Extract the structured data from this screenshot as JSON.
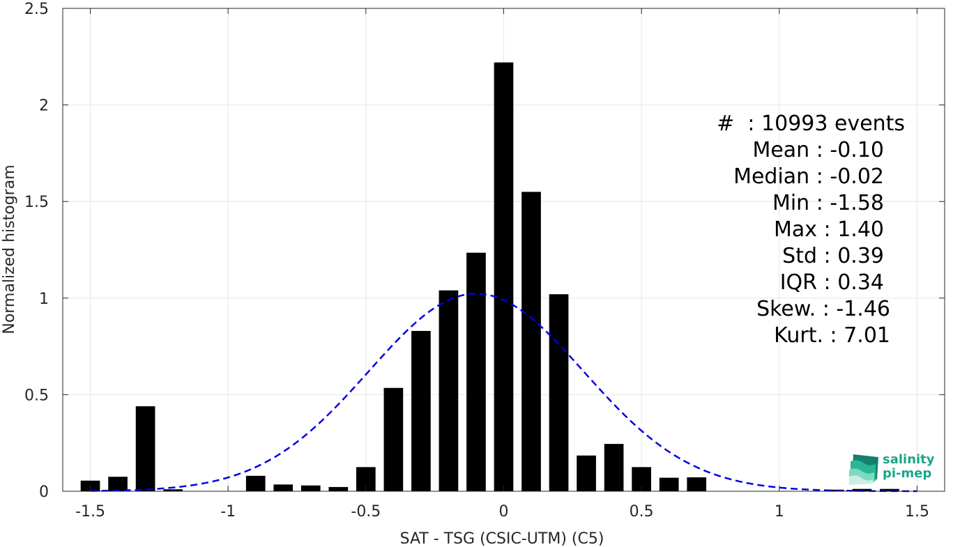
{
  "chart_data": {
    "type": "bar",
    "xlabel": "SAT - TSG (CSIC-UTM) (C5)",
    "ylabel": "Normalized histogram",
    "xlim": [
      -1.6,
      1.6
    ],
    "ylim": [
      0,
      2.5
    ],
    "xticks": [
      -1.5,
      -1,
      -0.5,
      0,
      0.5,
      1,
      1.5
    ],
    "xtick_labels": [
      "-1.5",
      "-1",
      "-0.5",
      "0",
      "0.5",
      "1",
      "1.5"
    ],
    "yticks": [
      0,
      0.5,
      1,
      1.5,
      2,
      2.5
    ],
    "ytick_labels": [
      "0",
      "0.5",
      "1",
      "1.5",
      "2",
      "2.5"
    ],
    "grid": true,
    "bar_color": "#000000",
    "bin_width": 0.1,
    "x": [
      -1.5,
      -1.4,
      -1.3,
      -1.2,
      -0.9,
      -0.8,
      -0.7,
      -0.6,
      -0.5,
      -0.4,
      -0.3,
      -0.2,
      -0.1,
      0.0,
      0.1,
      0.2,
      0.3,
      0.4,
      0.5,
      0.6,
      0.7,
      1.2,
      1.3,
      1.4
    ],
    "values": [
      0.055,
      0.075,
      0.44,
      0.01,
      0.08,
      0.035,
      0.03,
      0.022,
      0.125,
      0.535,
      0.83,
      1.04,
      1.235,
      2.22,
      1.55,
      1.02,
      0.185,
      0.245,
      0.125,
      0.07,
      0.072,
      0.008,
      0.012,
      0.012
    ],
    "fit": {
      "type": "normal",
      "mean": -0.1,
      "std": 0.39,
      "color": "#0000e6",
      "style": "dashed"
    }
  },
  "stats": {
    "lines": [
      {
        "label": "#  ",
        "value": ": 10993 events"
      },
      {
        "label": "Mean ",
        "value": ": -0.10"
      },
      {
        "label": "Median ",
        "value": ": -0.02"
      },
      {
        "label": "Min ",
        "value": ": -1.58"
      },
      {
        "label": "Max ",
        "value": ": 1.40"
      },
      {
        "label": "Std ",
        "value": ": 0.39"
      },
      {
        "label": "IQR ",
        "value": ": 0.34"
      },
      {
        "label": "Skew. ",
        "value": ": -1.46"
      },
      {
        "label": "Kurt. ",
        "value": ": 7.01"
      }
    ]
  },
  "logo": {
    "line1": "salinity",
    "line2": "pi-mep",
    "color": "#1aa58a"
  }
}
